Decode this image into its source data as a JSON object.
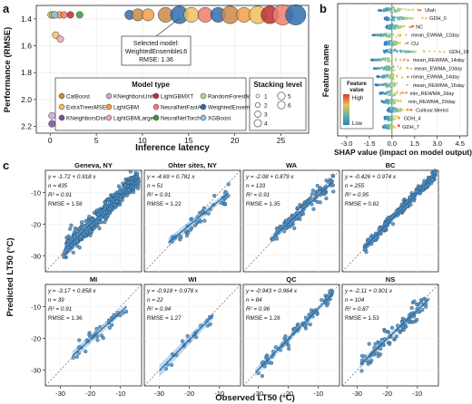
{
  "panels": {
    "a": "a",
    "b": "b",
    "c": "c"
  },
  "chart_data": [
    {
      "type": "scatter",
      "panel": "a",
      "xlabel": "Inference latency",
      "ylabel": "Performance (RMSE)",
      "xlim": [
        -1.5,
        28
      ],
      "ylim": [
        2.25,
        1.3
      ],
      "yreversed": true,
      "xticks": [
        "0",
        "5",
        "10",
        "15",
        "20",
        "25"
      ],
      "yticks": [
        "1.4",
        "1.6",
        "1.8",
        "2.0",
        "2.2"
      ],
      "legend_placement": "bottom",
      "legend_title": "Model type",
      "size_legend_title": "Stacking level",
      "size_levels": [
        "1",
        "2",
        "3",
        "4",
        "5",
        "6"
      ],
      "models": [
        {
          "name": "CatBoost",
          "color": "#c98a4a"
        },
        {
          "name": "ExtraTreesMSE",
          "color": "#f0c060"
        },
        {
          "name": "KNeighborsDist",
          "color": "#7a4fa0"
        },
        {
          "name": "KNeighborsUnif",
          "color": "#c9a7d8"
        },
        {
          "name": "LightGBM",
          "color": "#f2a04a"
        },
        {
          "name": "LightGBMLarge",
          "color": "#f1a7b0"
        },
        {
          "name": "LightGBMXT",
          "color": "#c03030"
        },
        {
          "name": "NeuralNetFastAI",
          "color": "#f07c6c"
        },
        {
          "name": "NeuralNetTorch",
          "color": "#3c9a3c"
        },
        {
          "name": "RandomForestMSE",
          "color": "#a8d88a"
        },
        {
          "name": "WeightedEnsemble",
          "color": "#2f6fb0"
        },
        {
          "name": "XGBoost",
          "color": "#8fc0e8"
        }
      ],
      "points": [
        {
          "x": 0.1,
          "y": 1.37,
          "m": 1,
          "s": 1
        },
        {
          "x": 0.3,
          "y": 1.37,
          "m": 9,
          "s": 1
        },
        {
          "x": 0.6,
          "y": 1.52,
          "m": 1,
          "s": 1
        },
        {
          "x": 1.1,
          "y": 1.55,
          "m": 5,
          "s": 1
        },
        {
          "x": 1.0,
          "y": 1.37,
          "m": 4,
          "s": 1
        },
        {
          "x": 1.5,
          "y": 1.37,
          "m": 7,
          "s": 1
        },
        {
          "x": 2.2,
          "y": 1.37,
          "m": 6,
          "s": 1
        },
        {
          "x": 0.2,
          "y": 2.12,
          "m": 3,
          "s": 1
        },
        {
          "x": 0.2,
          "y": 2.18,
          "m": 2,
          "s": 1
        },
        {
          "x": 0.5,
          "y": 1.37,
          "m": 11,
          "s": 1
        },
        {
          "x": 3.2,
          "y": 1.37,
          "m": 8,
          "s": 1
        },
        {
          "x": 8.6,
          "y": 1.37,
          "m": 10,
          "s": 2
        },
        {
          "x": 9.5,
          "y": 1.37,
          "m": 0,
          "s": 3
        },
        {
          "x": 10.6,
          "y": 1.37,
          "m": 4,
          "s": 3
        },
        {
          "x": 12.5,
          "y": 1.37,
          "m": 0,
          "s": 4
        },
        {
          "x": 14.0,
          "y": 1.37,
          "m": 10,
          "s": 5
        },
        {
          "x": 15.3,
          "y": 1.37,
          "m": 1,
          "s": 4
        },
        {
          "x": 16.8,
          "y": 1.37,
          "m": 7,
          "s": 4
        },
        {
          "x": 18.2,
          "y": 1.37,
          "m": 10,
          "s": 4
        },
        {
          "x": 19.5,
          "y": 1.37,
          "m": 0,
          "s": 5
        },
        {
          "x": 21.0,
          "y": 1.37,
          "m": 4,
          "s": 4
        },
        {
          "x": 22.5,
          "y": 1.37,
          "m": 1,
          "s": 5
        },
        {
          "x": 23.8,
          "y": 1.37,
          "m": 6,
          "s": 5
        },
        {
          "x": 25.2,
          "y": 1.37,
          "m": 7,
          "s": 6
        },
        {
          "x": 26.6,
          "y": 1.37,
          "m": 10,
          "s": 6
        }
      ],
      "annotation": {
        "line1": "Selected model:",
        "line2": "WeightedEnsembleL6",
        "line3": "RMSE: 1.36",
        "x": 14.0,
        "y": 1.37
      }
    },
    {
      "type": "beeswarm",
      "panel": "b",
      "xlabel": "SHAP value (impact on model output)",
      "ylabel": "Feature name",
      "xlim": [
        -3.6,
        5.0
      ],
      "xticks": [
        -3.0,
        -1.5,
        0.0,
        1.5,
        3.0,
        4.5
      ],
      "xticklabels": [
        "-3.0",
        "-1.5",
        "0.0",
        "1.5",
        "3.0",
        "4.5"
      ],
      "colorbar_title_line1": "Feature",
      "colorbar_title_line2": "value",
      "colorbar_high": "High",
      "colorbar_low": "Low",
      "features": [
        {
          "name": "Utah",
          "min": -0.9,
          "max": 2.0
        },
        {
          "name": "GDH_0",
          "min": -0.5,
          "max": 2.3
        },
        {
          "name": "NC",
          "min": -0.4,
          "max": 1.4
        },
        {
          "name": "mean_EWMA_12day",
          "min": -1.3,
          "max": 1.1
        },
        {
          "name": "CU",
          "min": -0.5,
          "max": 1.1
        },
        {
          "name": "GDH_10",
          "min": -0.6,
          "max": 3.6
        },
        {
          "name": "mean_REWMA_14day",
          "min": -1.4,
          "max": 1.2
        },
        {
          "name": "mean_EWMA_10day",
          "min": -1.2,
          "max": 1.3
        },
        {
          "name": "mean_EWMA_14day",
          "min": -1.0,
          "max": 1.1
        },
        {
          "name": "mean_REWMA_16day",
          "min": -1.1,
          "max": 1.2
        },
        {
          "name": "min_REWMA_2day",
          "min": -0.8,
          "max": 1.0
        },
        {
          "name": "min_REWMA_20day",
          "min": -0.7,
          "max": 0.9
        },
        {
          "name": "Cultivar.Merlot",
          "min": -0.3,
          "max": 1.4
        },
        {
          "name": "GDH_4",
          "min": -0.5,
          "max": 0.6
        },
        {
          "name": "GDH_7",
          "min": -0.6,
          "max": 0.5
        }
      ]
    },
    {
      "type": "scatter-grid",
      "panel": "c",
      "xlabel": "Observed LT50 (°C)",
      "ylabel": "Predicted LT50 (°C)",
      "xlim": [
        -35,
        -3
      ],
      "ylim": [
        -35,
        -3
      ],
      "xticks": [
        -30,
        -20,
        -10
      ],
      "yticks": [
        -30,
        -20,
        -10
      ],
      "xticklabels": [
        "-30",
        "-20",
        "-10"
      ],
      "yticklabels": [
        "-30",
        "-20",
        "-10"
      ],
      "panels": [
        {
          "title": "Geneva, NY",
          "eq": "y = -1.72 + 0.918 x",
          "n": "n = 435",
          "r2": "R² = 0.91",
          "rmse": "RMSE = 1.58",
          "a": -1.72,
          "b": 0.918,
          "n_pts": 435,
          "x_range": [
            -29,
            -4
          ],
          "sd": 1.58,
          "seed": 11
        },
        {
          "title": "Ohter sites, NY",
          "eq": "y = -4.69 + 0.781 x",
          "n": "n = 51",
          "r2": "R² = 0.91",
          "rmse": "RMSE = 1.22",
          "a": -4.69,
          "b": 0.781,
          "n_pts": 51,
          "x_range": [
            -27,
            -7
          ],
          "sd": 1.22,
          "seed": 23
        },
        {
          "title": "WA",
          "eq": "y = -2.08 + 0.879 x",
          "n": "n = 133",
          "r2": "R² = 0.91",
          "rmse": "RMSE = 1.35",
          "a": -2.08,
          "b": 0.879,
          "n_pts": 133,
          "x_range": [
            -26,
            -5
          ],
          "sd": 1.35,
          "seed": 37
        },
        {
          "title": "BC",
          "eq": "y = -0.426 + 0.974 x",
          "n": "n = 255",
          "r2": "R² = 0.95",
          "rmse": "RMSE = 0.82",
          "a": -0.426,
          "b": 0.974,
          "n_pts": 255,
          "x_range": [
            -28,
            -4
          ],
          "sd": 0.82,
          "seed": 41
        },
        {
          "title": "MI",
          "eq": "y = -3.17 + 0.858 x",
          "n": "n = 39",
          "r2": "R² = 0.91",
          "rmse": "RMSE = 1.36",
          "a": -3.17,
          "b": 0.858,
          "n_pts": 39,
          "x_range": [
            -26,
            -8
          ],
          "sd": 1.36,
          "seed": 53
        },
        {
          "title": "WI",
          "eq": "y = -0.918 + 0.978 x",
          "n": "n = 22",
          "r2": "R² = 0.94",
          "rmse": "RMSE = 1.27",
          "a": -0.918,
          "b": 0.978,
          "n_pts": 22,
          "x_range": [
            -30,
            -12
          ],
          "sd": 1.27,
          "seed": 61
        },
        {
          "title": "QC",
          "eq": "y = -0.943 + 0.964 x",
          "n": "n = 84",
          "r2": "R² = 0.96",
          "rmse": "RMSE = 1.28",
          "a": -0.943,
          "b": 0.964,
          "n_pts": 84,
          "x_range": [
            -31,
            -5
          ],
          "sd": 1.28,
          "seed": 71
        },
        {
          "title": "NS",
          "eq": "y = -2.11 + 0.901 x",
          "n": "n = 104",
          "r2": "R² = 0.87",
          "rmse": "RMSE = 1.53",
          "a": -2.11,
          "b": 0.901,
          "n_pts": 104,
          "x_range": [
            -29,
            -6
          ],
          "sd": 1.53,
          "seed": 83
        }
      ]
    }
  ]
}
